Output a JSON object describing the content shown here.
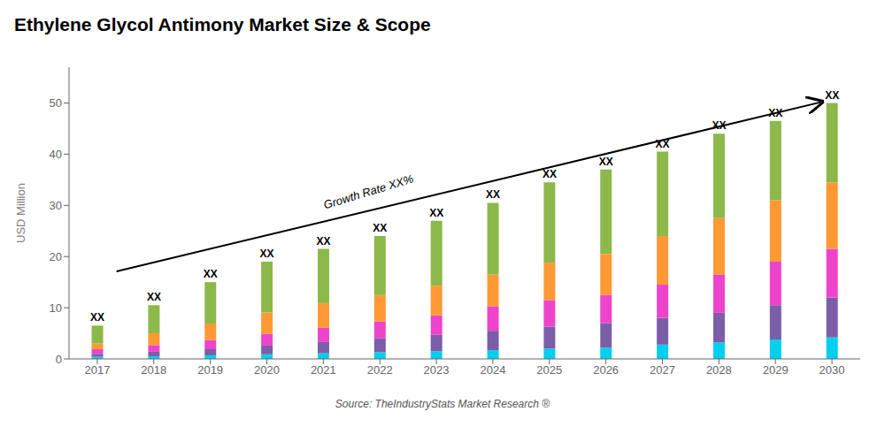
{
  "chart_data": {
    "type": "bar",
    "stacked": true,
    "title": "Ethylene Glycol Antimony Market Size & Scope",
    "ylabel": "USD Million",
    "source": "Source: TheIndustryStats Market Research ®",
    "annotations": [
      "Growth Rate XX%"
    ],
    "categories": [
      "2017",
      "2018",
      "2019",
      "2020",
      "2021",
      "2022",
      "2023",
      "2024",
      "2025",
      "2026",
      "2027",
      "2028",
      "2029",
      "2030"
    ],
    "series": [
      {
        "color": "#00CFEF",
        "values": [
          0.4,
          0.5,
          0.7,
          0.9,
          1.1,
          1.3,
          1.5,
          1.7,
          2.0,
          2.2,
          2.8,
          3.2,
          3.8,
          4.2
        ]
      },
      {
        "color": "#7B5EA7",
        "values": [
          0.6,
          0.9,
          1.2,
          1.7,
          2.2,
          2.7,
          3.2,
          3.8,
          4.3,
          4.8,
          5.2,
          5.8,
          6.7,
          7.8
        ]
      },
      {
        "color": "#EE44CC",
        "values": [
          0.9,
          1.3,
          1.8,
          2.3,
          2.8,
          3.3,
          3.8,
          4.8,
          5.2,
          5.5,
          6.5,
          7.5,
          8.5,
          9.5
        ]
      },
      {
        "color": "#FF9933",
        "values": [
          1.1,
          2.3,
          3.2,
          4.2,
          4.8,
          5.2,
          5.8,
          6.2,
          7.3,
          8.0,
          9.5,
          11.0,
          12.0,
          13.0
        ]
      },
      {
        "color": "#8DB84A",
        "values": [
          3.5,
          5.5,
          8.1,
          9.9,
          10.6,
          11.5,
          12.7,
          14.0,
          15.7,
          16.5,
          16.5,
          16.5,
          15.5,
          15.5
        ]
      }
    ],
    "total_labels": [
      "XX",
      "XX",
      "XX",
      "XX",
      "XX",
      "XX",
      "XX",
      "XX",
      "XX",
      "XX",
      "XX",
      "XX",
      "XX",
      "XX"
    ],
    "ylim": [
      0,
      57
    ],
    "yticks": [
      0,
      10,
      20,
      30,
      40,
      50
    ],
    "grid": false
  }
}
